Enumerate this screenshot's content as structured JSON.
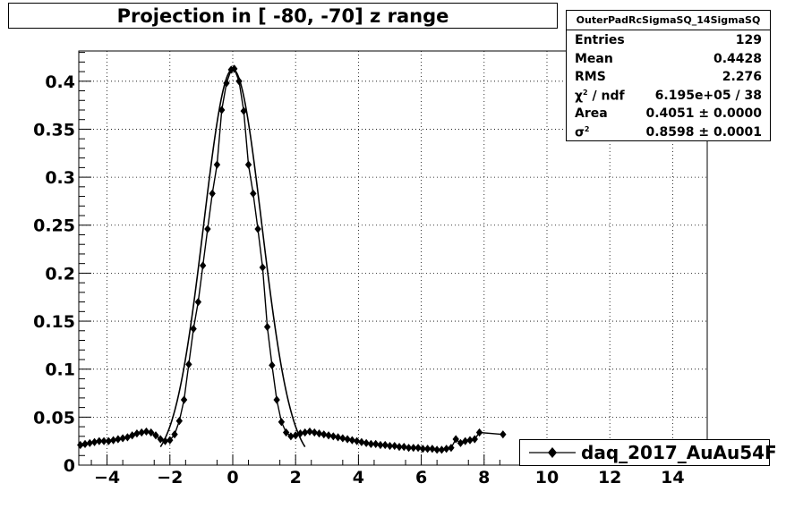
{
  "title": "Projection in [ -80, -70] z range",
  "stats": {
    "name": "OuterPadRcSigmaSQ_14SigmaSQ",
    "rows": [
      {
        "key": "Entries",
        "value": "129"
      },
      {
        "key": "Mean",
        "value": "0.4428"
      },
      {
        "key": "RMS",
        "value": "2.276"
      },
      {
        "key": "χ / ndf",
        "key_sup": "2",
        "value": "6.195e+05 / 38"
      },
      {
        "key": "Area",
        "value": "0.4051 ± 0.0000"
      },
      {
        "key": "σ",
        "key_sup": "2",
        "value": "0.8598 ± 0.0001"
      }
    ]
  },
  "legend": {
    "label": "daq_2017_AuAu54F"
  },
  "chart_data": {
    "type": "scatter",
    "title": "Projection in [ -80, -70] z range",
    "xlabel": "",
    "ylabel": "",
    "xlim": [
      -4.9,
      15.1
    ],
    "ylim": [
      0,
      0.4315
    ],
    "grid": true,
    "legend_position": "bottom-right",
    "x_ticks": [
      -4,
      -2,
      0,
      2,
      4,
      6,
      8,
      10,
      12,
      14
    ],
    "x_tick_labels": [
      "−4",
      "−2",
      "0",
      "2",
      "4",
      "6",
      "8",
      "10",
      "12",
      "14"
    ],
    "y_ticks": [
      0,
      0.05,
      0.1,
      0.15,
      0.2,
      0.25,
      0.3,
      0.35,
      0.4
    ],
    "y_tick_labels": [
      "0",
      "0.05",
      "0.1",
      "0.15",
      "0.2",
      "0.25",
      "0.3",
      "0.35",
      "0.4"
    ],
    "series": [
      {
        "name": "daq_2017_AuAu54F",
        "x": [
          -4.85,
          -4.7,
          -4.55,
          -4.4,
          -4.25,
          -4.1,
          -3.95,
          -3.8,
          -3.65,
          -3.5,
          -3.35,
          -3.2,
          -3.05,
          -2.9,
          -2.75,
          -2.6,
          -2.45,
          -2.3,
          -2.15,
          -2.0,
          -1.85,
          -1.7,
          -1.55,
          -1.4,
          -1.25,
          -1.1,
          -0.95,
          -0.8,
          -0.65,
          -0.5,
          -0.35,
          -0.2,
          -0.05,
          0.05,
          0.2,
          0.35,
          0.5,
          0.65,
          0.8,
          0.95,
          1.1,
          1.25,
          1.4,
          1.55,
          1.7,
          1.85,
          2.0,
          2.15,
          2.3,
          2.45,
          2.6,
          2.75,
          2.9,
          3.05,
          3.2,
          3.35,
          3.5,
          3.65,
          3.8,
          3.95,
          4.1,
          4.25,
          4.4,
          4.55,
          4.7,
          4.85,
          5.0,
          5.15,
          5.3,
          5.45,
          5.6,
          5.75,
          5.9,
          6.05,
          6.2,
          6.35,
          6.5,
          6.65,
          6.8,
          6.95,
          7.1,
          7.25,
          7.4,
          7.55,
          7.7,
          7.85,
          8.6
        ],
        "y": [
          0.021,
          0.022,
          0.023,
          0.024,
          0.025,
          0.025,
          0.025,
          0.026,
          0.027,
          0.028,
          0.029,
          0.031,
          0.033,
          0.034,
          0.035,
          0.034,
          0.031,
          0.027,
          0.025,
          0.026,
          0.032,
          0.046,
          0.068,
          0.105,
          0.142,
          0.17,
          0.208,
          0.246,
          0.283,
          0.313,
          0.37,
          0.398,
          0.412,
          0.413,
          0.4,
          0.369,
          0.313,
          0.283,
          0.246,
          0.206,
          0.144,
          0.104,
          0.068,
          0.045,
          0.034,
          0.03,
          0.031,
          0.033,
          0.034,
          0.035,
          0.034,
          0.033,
          0.032,
          0.031,
          0.03,
          0.029,
          0.028,
          0.027,
          0.026,
          0.025,
          0.024,
          0.023,
          0.022,
          0.022,
          0.021,
          0.021,
          0.02,
          0.02,
          0.019,
          0.019,
          0.018,
          0.018,
          0.018,
          0.017,
          0.017,
          0.017,
          0.016,
          0.016,
          0.017,
          0.018,
          0.027,
          0.023,
          0.025,
          0.026,
          0.027,
          0.034,
          0.032
        ]
      },
      {
        "name": "",
        "type": "line",
        "fit": {
          "amplitude": 0.4125,
          "sigma2": 0.8598,
          "mean": 0.0
        }
      }
    ]
  }
}
